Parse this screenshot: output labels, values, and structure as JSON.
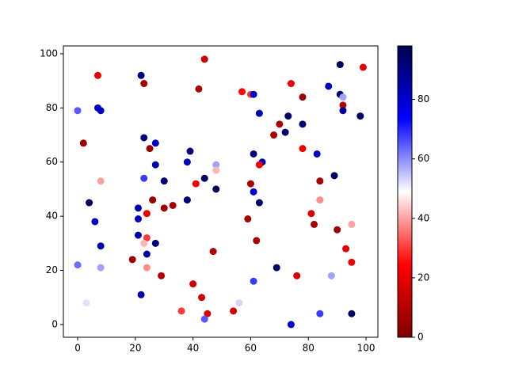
{
  "chart_data": {
    "type": "scatter",
    "x": [
      0,
      7,
      7,
      8,
      2,
      8,
      4,
      6,
      8,
      0,
      8,
      3,
      22,
      23,
      44,
      42,
      23,
      25,
      27,
      27,
      23,
      30,
      26,
      21,
      24,
      21,
      30,
      33,
      21,
      24,
      23,
      27,
      24,
      19,
      24,
      29,
      22,
      39,
      38,
      48,
      48,
      41,
      44,
      48,
      38,
      47,
      40,
      43,
      36,
      45,
      44,
      54,
      56,
      57,
      60,
      61,
      63,
      61,
      64,
      63,
      60,
      61,
      63,
      59,
      62,
      61,
      69,
      74,
      74,
      73,
      70,
      68,
      72,
      78,
      78,
      78,
      83,
      84,
      89,
      84,
      81,
      82,
      76,
      88,
      84,
      87,
      91,
      91,
      92,
      92,
      92,
      98,
      99,
      90,
      95,
      93,
      95,
      95
    ],
    "y": [
      79,
      92,
      80,
      79,
      67,
      53,
      45,
      38,
      29,
      22,
      21,
      8,
      92,
      89,
      98,
      87,
      69,
      65,
      67,
      59,
      54,
      53,
      46,
      43,
      41,
      39,
      43,
      44,
      33,
      32,
      30,
      30,
      26,
      24,
      21,
      18,
      11,
      64,
      60,
      59,
      57,
      52,
      54,
      50,
      46,
      27,
      15,
      10,
      5,
      4,
      2,
      5,
      8,
      86,
      85,
      85,
      78,
      63,
      60,
      59,
      52,
      49,
      45,
      39,
      31,
      16,
      21,
      0,
      89,
      77,
      74,
      70,
      71,
      84,
      74,
      65,
      63,
      53,
      55,
      46,
      41,
      37,
      18,
      18,
      4,
      88,
      96,
      85,
      84,
      81,
      79,
      77,
      95,
      35,
      37,
      28,
      23,
      4
    ],
    "c": [
      65,
      20,
      80,
      82,
      5,
      40,
      95,
      82,
      85,
      63,
      58,
      52,
      92,
      8,
      15,
      8,
      92,
      5,
      82,
      85,
      68,
      92,
      5,
      85,
      22,
      82,
      5,
      8,
      85,
      30,
      42,
      92,
      88,
      5,
      38,
      10,
      85,
      92,
      82,
      58,
      42,
      22,
      95,
      97,
      92,
      10,
      15,
      15,
      30,
      18,
      65,
      15,
      53,
      25,
      30,
      82,
      85,
      92,
      85,
      22,
      8,
      80,
      95,
      8,
      8,
      68,
      95,
      80,
      22,
      95,
      8,
      8,
      95,
      5,
      92,
      22,
      82,
      8,
      95,
      38,
      18,
      8,
      18,
      58,
      68,
      82,
      95,
      92,
      58,
      10,
      88,
      95,
      20,
      5,
      40,
      20,
      20,
      95
    ],
    "cmap": "seismic_r",
    "clim": [
      0,
      98
    ],
    "cticks": [
      0,
      20,
      40,
      60,
      80
    ],
    "xlim": [
      -4.95,
      104.1
    ],
    "ylim": [
      -4.7,
      102.9
    ],
    "xticks": [
      0,
      20,
      40,
      60,
      80,
      100
    ],
    "yticks": [
      0,
      20,
      40,
      60,
      80,
      100
    ]
  }
}
